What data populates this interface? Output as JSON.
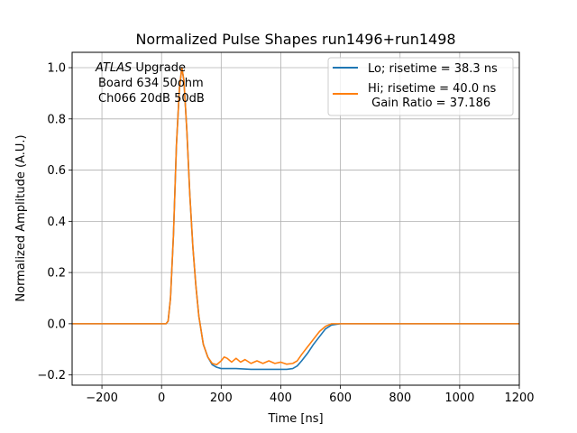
{
  "chart_data": {
    "type": "line",
    "title": "Normalized Pulse Shapes run1496+run1498",
    "xlabel": "Time [ns]",
    "ylabel": "Normalized Amplitude (A.U.)",
    "xlim": [
      -300,
      1200
    ],
    "ylim": [
      -0.24,
      1.06
    ],
    "grid": true,
    "legend_position": "top-right",
    "x_ticks": [
      -200,
      0,
      200,
      400,
      600,
      800,
      1000,
      1200
    ],
    "x_tick_labels": [
      "−200",
      "0",
      "200",
      "400",
      "600",
      "800",
      "1000",
      "1200"
    ],
    "y_ticks": [
      -0.2,
      0.0,
      0.2,
      0.4,
      0.6,
      0.8,
      1.0
    ],
    "y_tick_labels": [
      "−0.2",
      "0.0",
      "0.2",
      "0.4",
      "0.6",
      "0.8",
      "1.0"
    ],
    "annotation": {
      "atlas": "ATLAS",
      "line1_rest": " Upgrade",
      "line2": "Board 634 50ohm",
      "line3": "Ch066 20dB 50dB"
    },
    "series": [
      {
        "name": "Lo; risetime = 38.3 ns",
        "color": "#1f77b4",
        "x": [
          -300,
          -200,
          -100,
          0,
          15,
          22,
          30,
          40,
          50,
          60,
          68,
          75,
          85,
          95,
          105,
          115,
          125,
          140,
          155,
          170,
          185,
          200,
          220,
          250,
          300,
          350,
          400,
          420,
          440,
          455,
          470,
          490,
          510,
          530,
          550,
          570,
          600,
          700,
          800,
          900,
          1000,
          1100,
          1200
        ],
        "y": [
          0.0,
          0.0,
          0.0,
          0.0,
          0.0,
          0.01,
          0.1,
          0.35,
          0.7,
          0.92,
          1.0,
          0.95,
          0.75,
          0.5,
          0.3,
          0.15,
          0.03,
          -0.08,
          -0.13,
          -0.16,
          -0.17,
          -0.175,
          -0.175,
          -0.175,
          -0.178,
          -0.178,
          -0.178,
          -0.178,
          -0.175,
          -0.165,
          -0.145,
          -0.115,
          -0.08,
          -0.05,
          -0.02,
          -0.005,
          0.0,
          0.0,
          0.0,
          0.0,
          0.0,
          0.0,
          0.0
        ]
      },
      {
        "name": "Hi; risetime = 40.0 ns\n Gain Ratio = 37.186",
        "color": "#ff7f0e",
        "x": [
          -300,
          -200,
          -100,
          0,
          15,
          22,
          30,
          40,
          50,
          60,
          68,
          75,
          85,
          95,
          105,
          115,
          125,
          140,
          155,
          170,
          185,
          200,
          210,
          220,
          235,
          250,
          265,
          280,
          300,
          320,
          340,
          360,
          380,
          400,
          420,
          440,
          455,
          470,
          490,
          510,
          530,
          550,
          570,
          600,
          700,
          800,
          900,
          1000,
          1100,
          1200
        ],
        "y": [
          0.0,
          0.0,
          0.0,
          0.0,
          0.0,
          0.01,
          0.1,
          0.35,
          0.7,
          0.92,
          1.0,
          0.95,
          0.75,
          0.5,
          0.3,
          0.15,
          0.03,
          -0.08,
          -0.13,
          -0.155,
          -0.16,
          -0.145,
          -0.13,
          -0.135,
          -0.15,
          -0.135,
          -0.15,
          -0.14,
          -0.155,
          -0.145,
          -0.155,
          -0.145,
          -0.155,
          -0.15,
          -0.158,
          -0.155,
          -0.145,
          -0.12,
          -0.09,
          -0.06,
          -0.03,
          -0.01,
          0.0,
          0.0,
          0.0,
          0.0,
          0.0,
          0.0,
          0.0,
          0.0
        ]
      }
    ]
  }
}
